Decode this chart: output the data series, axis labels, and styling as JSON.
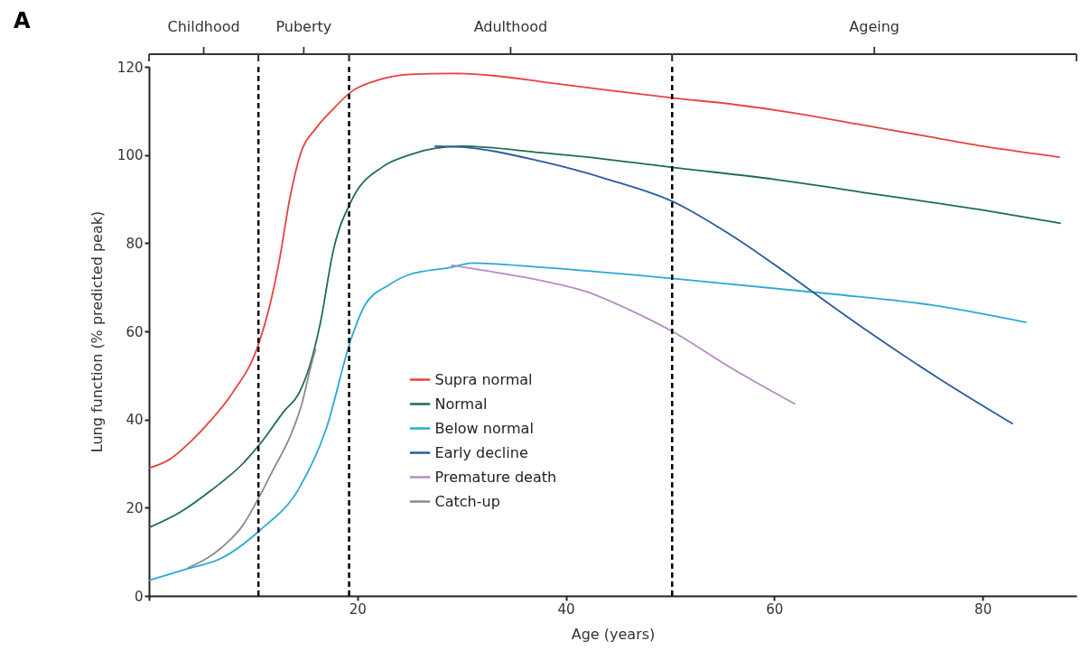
{
  "chart_data": {
    "type": "line",
    "xlabel": "Age (years)",
    "ylabel": "Lung function (% predicted peak)",
    "annotations": [
      "A",
      "Childhood",
      "Puberty",
      "Adulthood",
      "Ageing"
    ],
    "xlim": [
      0,
      89
    ],
    "xticks": [
      {
        "value": 0,
        "label": null
      },
      20,
      40,
      60,
      80
    ],
    "ylim": [
      0,
      120
    ],
    "yticks": [
      0,
      20,
      40,
      60,
      80,
      100,
      120
    ],
    "grid": false,
    "legend": "center",
    "marker": "none",
    "line_style": "solid",
    "ref_lines": [
      {
        "axis": "x",
        "value": 10.5,
        "color": "#000000",
        "line_style": "dashed"
      },
      {
        "axis": "x",
        "value": 19.2,
        "color": "#000000",
        "line_style": "dashed"
      },
      {
        "axis": "x",
        "value": 50.2,
        "color": "#000000",
        "line_style": "dashed"
      }
    ],
    "series": [
      {
        "name": "Supra normal",
        "color": "#e8423f",
        "x": [
          0,
          2,
          4,
          6,
          8,
          10.5,
          11.5,
          12.5,
          13.5,
          14.5,
          16,
          17.5,
          19.5,
          22,
          25,
          29,
          33,
          38,
          44,
          50,
          56,
          62,
          68,
          74,
          80,
          87.4
        ],
        "values": [
          29,
          31,
          35,
          40,
          46,
          57,
          65,
          76,
          90,
          100,
          106,
          110,
          114.5,
          117,
          118.3,
          118.5,
          118,
          116.5,
          114.7,
          113,
          111.5,
          109.5,
          107,
          104.5,
          102,
          99.5
        ]
      },
      {
        "name": "Normal",
        "color": "#1e6e4a",
        "x": [
          0,
          3,
          6,
          9,
          10.7,
          13,
          14.4,
          15.4,
          16.4,
          17.7,
          19.4,
          22.4,
          25,
          27.4,
          30,
          37.7,
          44,
          50.2,
          60,
          70,
          80,
          87.5
        ],
        "values": [
          15.5,
          19,
          24,
          30,
          34.6,
          42,
          46,
          52,
          61.4,
          78.5,
          89.5,
          97.3,
          100,
          101.5,
          102,
          100.5,
          99,
          97.2,
          94.5,
          91,
          87.5,
          84.5
        ]
      },
      {
        "name": "Below normal",
        "color": "#29a9d6",
        "x": [
          0,
          3.5,
          7,
          10.7,
          14.4,
          17,
          19.4,
          20.7,
          23,
          25,
          29,
          31,
          37.7,
          50.2,
          65.4,
          75,
          84.2
        ],
        "values": [
          3.5,
          6,
          8.6,
          15,
          24.4,
          37.9,
          58.3,
          65.9,
          70.5,
          72.9,
          74.5,
          75.5,
          74.5,
          72,
          68.5,
          66,
          62
        ]
      },
      {
        "name": "Early decline",
        "color": "#2a5a9e",
        "x": [
          27.4,
          30,
          37.7,
          44,
          50.2,
          56.4,
          61,
          65.4,
          69,
          76,
          82.9
        ],
        "values": [
          102,
          101.8,
          98.5,
          94.5,
          89.5,
          81,
          73.5,
          66,
          60,
          49,
          39
        ]
      },
      {
        "name": "Premature death",
        "color": "#b58cc4",
        "x": [
          29,
          33,
          37.7,
          42,
          46,
          50.2,
          56,
          62
        ],
        "values": [
          75,
          73.5,
          71.5,
          69,
          65,
          60,
          51.5,
          43.5
        ]
      },
      {
        "name": "Catch-up",
        "color": "#8a8a8a",
        "x": [
          3.7,
          7,
          9,
          10.7,
          12,
          13.4,
          14.6,
          15.7,
          16
        ],
        "values": [
          6.3,
          11,
          16,
          23,
          29,
          35.4,
          43,
          53.6,
          56
        ]
      }
    ]
  }
}
